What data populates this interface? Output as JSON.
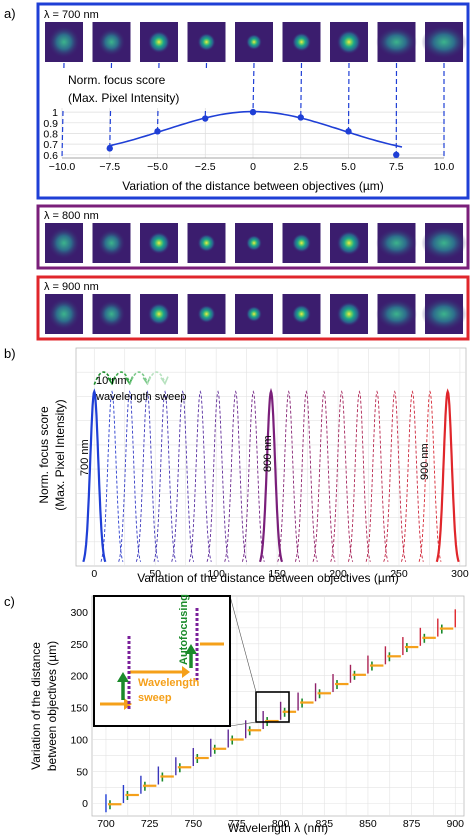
{
  "colors": {
    "blue": "#1f3fd6",
    "purple": "#7a1f7a",
    "red": "#e0262b",
    "orange": "#f5a01a",
    "green": "#1a8a2a",
    "pink": "#d06a8a"
  },
  "panel_a": {
    "label": "a)",
    "rows": [
      {
        "lambda_label": "λ = 700 nm",
        "border_color": "#1f3fd6",
        "thumb_count": 9
      },
      {
        "lambda_label": "λ = 800 nm",
        "border_color": "#7a1f7a",
        "thumb_count": 9
      },
      {
        "lambda_label": "λ = 900 nm",
        "border_color": "#e0262b",
        "thumb_count": 9
      }
    ]
  },
  "panel_b": {
    "label": "b)",
    "annotation_line1": "10 nm",
    "annotation_line2": "wavelength sweep",
    "peak_labels": [
      "700 nm",
      "800 nm",
      "900 nm"
    ]
  },
  "panel_c": {
    "label": "c)",
    "inset_wavelength_label": "Wavelength",
    "inset_sweep_label": "sweep",
    "inset_autofocus_label": "Autofocusing"
  },
  "chart_data": [
    {
      "type": "line",
      "ylabel_line1": "Norm. focus score",
      "ylabel_line2": "(Max. Pixel Intensity)",
      "xlabel": "Variation of the distance between objectives (µm)",
      "x_ticks": [
        "−10.0",
        "−7.5",
        "−5.0",
        "−2.5",
        "0",
        "2.5",
        "5.0",
        "7.5",
        "10.0"
      ],
      "y_ticks": [
        "0.6",
        "0.7",
        "0.8",
        "0.9",
        "1"
      ],
      "xlim": [
        -10,
        10
      ],
      "ylim": [
        0.57,
        1.02
      ],
      "grid": true,
      "points_x": [
        -7.5,
        -5.0,
        -2.5,
        0,
        2.5,
        5.0,
        7.5
      ],
      "points_y": [
        0.66,
        0.82,
        0.94,
        1.0,
        0.95,
        0.82,
        0.6
      ]
    },
    {
      "type": "line",
      "ylabel_line1": "Norm. focus score",
      "ylabel_line2": "(Max. Pixel Intensity)",
      "xlabel": "Variation of the distance between objectives (µm)",
      "x_ticks": [
        "0",
        "50",
        "100",
        "150",
        "200",
        "250",
        "300"
      ],
      "xlim": [
        -15,
        305
      ],
      "ylim": [
        0,
        1.25
      ],
      "grid": true,
      "peak_positions": [
        0,
        14.5,
        29,
        43.5,
        58,
        72.5,
        87,
        101.5,
        116,
        130.5,
        145,
        159.5,
        174,
        188.5,
        203,
        217.5,
        232,
        246.5,
        261,
        275.5,
        290
      ],
      "solid_peaks": [
        0,
        145,
        290
      ]
    },
    {
      "type": "scatter",
      "ylabel_line1": "Variation of the distance",
      "ylabel_line2": "between objectives (µm)",
      "xlabel": "Wavelength λ (nm)",
      "x_ticks": [
        "700",
        "725",
        "750",
        "775",
        "800",
        "825",
        "850",
        "875",
        "900"
      ],
      "y_ticks": [
        "0",
        "50",
        "100",
        "150",
        "200",
        "250",
        "300"
      ],
      "xlim": [
        692,
        905
      ],
      "ylim": [
        -20,
        325
      ],
      "grid": true,
      "x_start": 700,
      "x_end": 900,
      "step_nm": 10,
      "y_start": 0,
      "y_end": 290
    }
  ]
}
